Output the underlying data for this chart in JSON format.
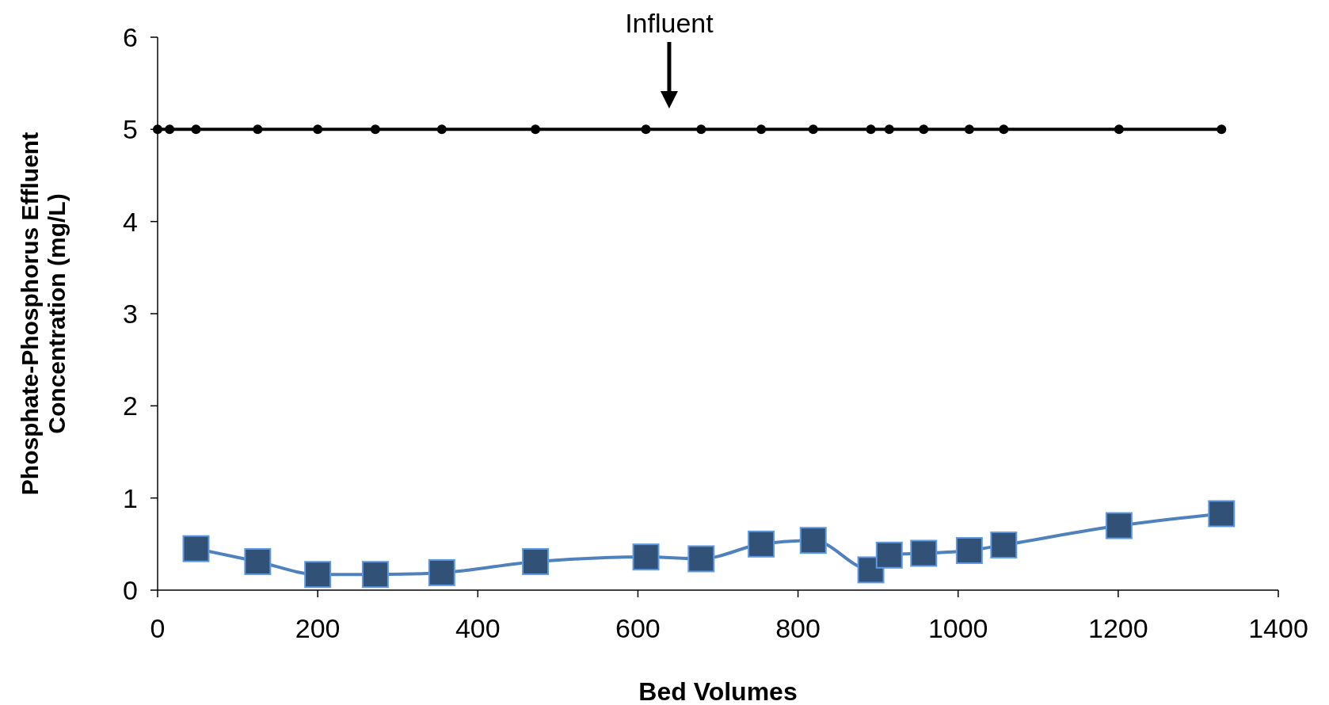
{
  "chart_data": {
    "type": "line",
    "xlabel": "Bed Volumes",
    "ylabel": "Phosphate-Phosphorus Effluent\nConcentration (mg/L)",
    "xlim": [
      0,
      1400
    ],
    "xticks": [
      0,
      200,
      400,
      600,
      800,
      1000,
      1200,
      1400
    ],
    "ylim": [
      0,
      6
    ],
    "yticks": [
      0,
      1,
      2,
      3,
      4,
      5,
      6
    ],
    "grid": false,
    "annotations": [
      "Influent"
    ],
    "series": [
      {
        "color": "#000000",
        "marker": "circle",
        "x": [
          0,
          15,
          48,
          125,
          200,
          272,
          355,
          472,
          610,
          679,
          754,
          819,
          891,
          914,
          957,
          1014,
          1057,
          1201,
          1329
        ],
        "values": [
          5,
          5,
          5,
          5,
          5,
          5,
          5,
          5,
          5,
          5,
          5,
          5,
          5,
          5,
          5,
          5,
          5,
          5,
          5
        ]
      },
      {
        "color": "#4f81bd",
        "marker": "square",
        "x": [
          48,
          125,
          200,
          272,
          355,
          472,
          610,
          679,
          754,
          819,
          891,
          914,
          957,
          1014,
          1057,
          1201,
          1329
        ],
        "values": [
          0.45,
          0.31,
          0.17,
          0.17,
          0.19,
          0.31,
          0.36,
          0.34,
          0.5,
          0.54,
          0.22,
          0.38,
          0.4,
          0.43,
          0.49,
          0.7,
          0.83
        ]
      }
    ]
  }
}
